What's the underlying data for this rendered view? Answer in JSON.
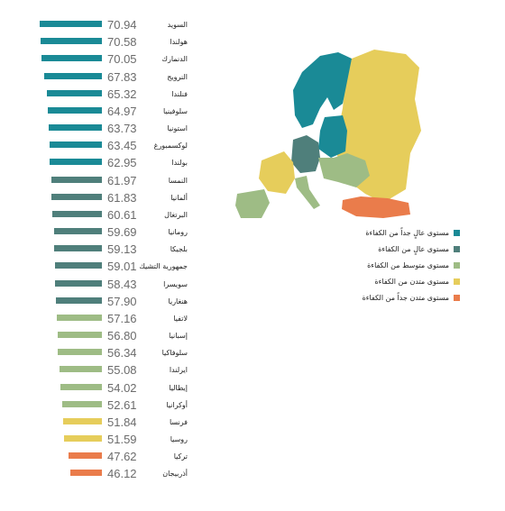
{
  "chart_data": {
    "type": "bar",
    "orientation": "horizontal",
    "xlim": [
      0,
      75
    ],
    "grid": false,
    "legend_position": "right",
    "categories": [
      "السويد",
      "هولندا",
      "الدنمارك",
      "النرويج",
      "فنلندا",
      "سلوفينيا",
      "استونيا",
      "لوكسمبورغ",
      "بولندا",
      "النمسا",
      "ألمانيا",
      "البرتغال",
      "رومانيا",
      "بلجيكا",
      "جمهورية التشيك",
      "سويسرا",
      "هنغاريا",
      "لاتفيا",
      "إسبانيا",
      "سلوفاكيا",
      "ايرلندا",
      "إيطاليا",
      "أوكرانيا",
      "فرنسا",
      "روسيا",
      "تركيا",
      "أذربيجان"
    ],
    "values": [
      70.94,
      70.58,
      70.05,
      67.83,
      65.32,
      64.97,
      63.73,
      63.45,
      62.95,
      61.97,
      61.83,
      60.61,
      59.69,
      59.13,
      59.01,
      58.43,
      57.9,
      57.16,
      56.8,
      56.34,
      55.08,
      54.02,
      52.61,
      51.84,
      51.59,
      47.62,
      46.12
    ],
    "value_labels": [
      "70.94",
      "70.58",
      "70.05",
      "67.83",
      "65.32",
      "64.97",
      "63.73",
      "63.45",
      "62.95",
      "61.97",
      "61.83",
      "60.61",
      "59.69",
      "59.13",
      "59.01",
      "58.43",
      "57.90",
      "57.16",
      "56.80",
      "56.34",
      "55.08",
      "54.02",
      "52.61",
      "51.84",
      "51.59",
      "47.62",
      "46.12"
    ],
    "levels": [
      0,
      0,
      0,
      0,
      0,
      0,
      0,
      0,
      0,
      1,
      1,
      1,
      1,
      1,
      1,
      1,
      1,
      2,
      2,
      2,
      2,
      2,
      2,
      3,
      3,
      4,
      4
    ],
    "legend": [
      {
        "label": "مستوى عالٍ جداً من الكفاءة",
        "color": "#1a8a96"
      },
      {
        "label": "مستوى عالٍ من الكفاءة",
        "color": "#4f7f7b"
      },
      {
        "label": "مستوى متوسط من الكفاءة",
        "color": "#9ebc85"
      },
      {
        "label": "مستوى متدن من الكفاءة",
        "color": "#e6cd5b"
      },
      {
        "label": "مستوى متدن جداً من الكفاءة",
        "color": "#ea7c4b"
      }
    ]
  }
}
